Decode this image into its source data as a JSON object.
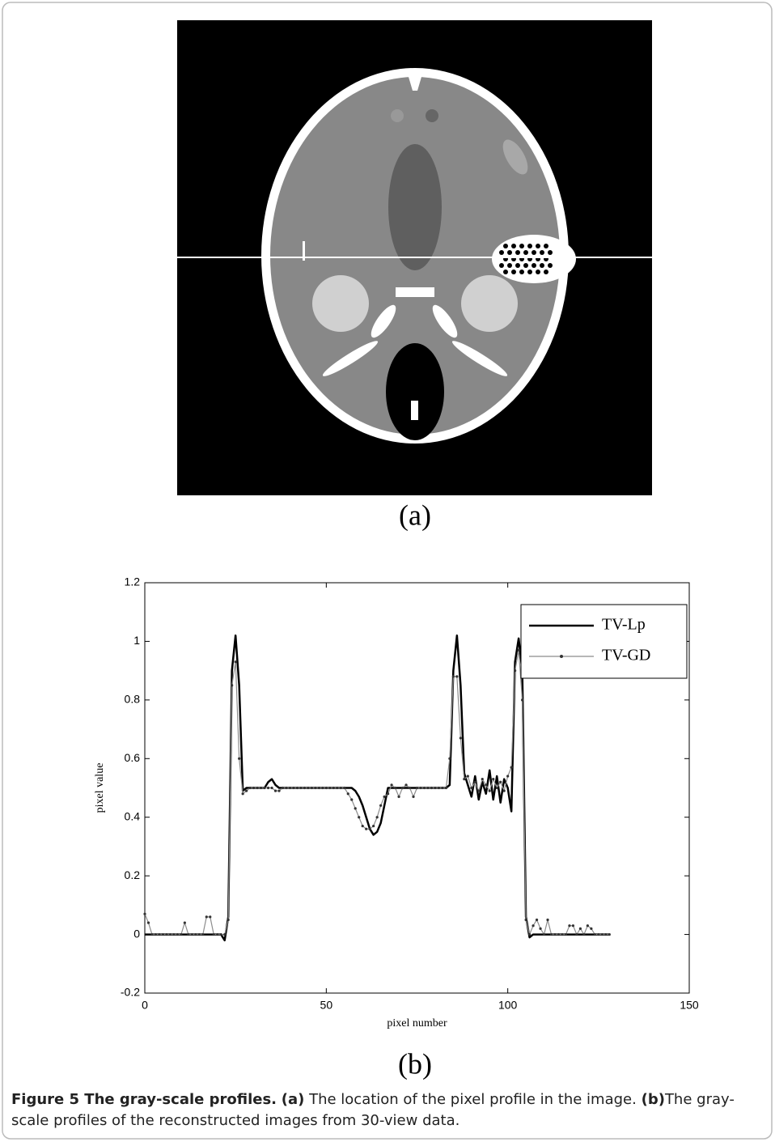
{
  "panels": {
    "a_label": "(a)",
    "b_label": "(b)"
  },
  "caption": {
    "title": "Figure 5 The gray-scale profiles.",
    "a_tag": "(a)",
    "a_text": "The location of the pixel profile in the image.",
    "b_tag": "(b)",
    "b_text": "The gray-scale profiles of the reconstructed images from 30-view data."
  },
  "chart_data": {
    "type": "line",
    "xlabel": "pixel number",
    "ylabel": "pixel value",
    "xlim": [
      0,
      150
    ],
    "ylim": [
      -0.2,
      1.2
    ],
    "xticks": [
      0,
      50,
      100,
      150
    ],
    "yticks": [
      -0.2,
      0,
      0.2,
      0.4,
      0.6,
      0.8,
      1,
      1.2
    ],
    "legend": "top-right",
    "x": [
      0,
      1,
      2,
      3,
      4,
      5,
      6,
      7,
      8,
      9,
      10,
      11,
      12,
      13,
      14,
      15,
      16,
      17,
      18,
      19,
      20,
      21,
      22,
      23,
      24,
      25,
      26,
      27,
      28,
      29,
      30,
      31,
      32,
      33,
      34,
      35,
      36,
      37,
      38,
      39,
      40,
      41,
      42,
      43,
      44,
      45,
      46,
      47,
      48,
      49,
      50,
      51,
      52,
      53,
      54,
      55,
      56,
      57,
      58,
      59,
      60,
      61,
      62,
      63,
      64,
      65,
      66,
      67,
      68,
      69,
      70,
      71,
      72,
      73,
      74,
      75,
      76,
      77,
      78,
      79,
      80,
      81,
      82,
      83,
      84,
      85,
      86,
      87,
      88,
      89,
      90,
      91,
      92,
      93,
      94,
      95,
      96,
      97,
      98,
      99,
      100,
      101,
      102,
      103,
      104,
      105,
      106,
      107,
      108,
      109,
      110,
      111,
      112,
      113,
      114,
      115,
      116,
      117,
      118,
      119,
      120,
      121,
      122,
      123,
      124,
      125,
      126,
      127,
      128
    ],
    "series": [
      {
        "name": "TV-Lp",
        "color": "#000000",
        "width": 2.5,
        "marker": false,
        "values": [
          0,
          0,
          0,
          0,
          0,
          0,
          0,
          0,
          0,
          0,
          0,
          0,
          0,
          0,
          0,
          0,
          0,
          0,
          0,
          0,
          0,
          0,
          -0.02,
          0.06,
          0.9,
          1.02,
          0.85,
          0.49,
          0.5,
          0.5,
          0.5,
          0.5,
          0.5,
          0.5,
          0.52,
          0.53,
          0.51,
          0.5,
          0.5,
          0.5,
          0.5,
          0.5,
          0.5,
          0.5,
          0.5,
          0.5,
          0.5,
          0.5,
          0.5,
          0.5,
          0.5,
          0.5,
          0.5,
          0.5,
          0.5,
          0.5,
          0.5,
          0.5,
          0.49,
          0.47,
          0.44,
          0.4,
          0.36,
          0.34,
          0.35,
          0.38,
          0.44,
          0.5,
          0.5,
          0.5,
          0.5,
          0.5,
          0.5,
          0.5,
          0.5,
          0.5,
          0.5,
          0.5,
          0.5,
          0.5,
          0.5,
          0.5,
          0.5,
          0.5,
          0.51,
          0.9,
          1.02,
          0.85,
          0.55,
          0.51,
          0.47,
          0.54,
          0.46,
          0.52,
          0.48,
          0.56,
          0.46,
          0.54,
          0.45,
          0.53,
          0.5,
          0.42,
          0.93,
          1.01,
          0.9,
          0.06,
          -0.01,
          0,
          0,
          0,
          0,
          0,
          0,
          0,
          0,
          0,
          0,
          0,
          0,
          0,
          0,
          0,
          0,
          0,
          0,
          0,
          0,
          0,
          0
        ]
      },
      {
        "name": "TV-GD",
        "color": "#8c8c8c",
        "width": 1.2,
        "marker": true,
        "values": [
          0.07,
          0.04,
          0,
          0,
          0,
          0,
          0,
          0,
          0,
          0,
          0,
          0.04,
          0,
          0,
          0,
          0,
          0,
          0.06,
          0.06,
          0,
          0,
          0,
          0,
          0.05,
          0.85,
          0.93,
          0.6,
          0.48,
          0.49,
          0.5,
          0.5,
          0.5,
          0.5,
          0.5,
          0.5,
          0.5,
          0.49,
          0.49,
          0.5,
          0.5,
          0.5,
          0.5,
          0.5,
          0.5,
          0.5,
          0.5,
          0.5,
          0.5,
          0.5,
          0.5,
          0.5,
          0.5,
          0.5,
          0.5,
          0.5,
          0.5,
          0.48,
          0.46,
          0.43,
          0.4,
          0.37,
          0.36,
          0.36,
          0.37,
          0.4,
          0.44,
          0.47,
          0.48,
          0.51,
          0.5,
          0.47,
          0.5,
          0.51,
          0.5,
          0.47,
          0.5,
          0.5,
          0.5,
          0.5,
          0.5,
          0.5,
          0.5,
          0.5,
          0.5,
          0.6,
          0.88,
          0.88,
          0.67,
          0.53,
          0.54,
          0.5,
          0.52,
          0.49,
          0.53,
          0.51,
          0.49,
          0.53,
          0.5,
          0.52,
          0.49,
          0.54,
          0.57,
          0.9,
          0.97,
          0.8,
          0.05,
          0,
          0.03,
          0.05,
          0.02,
          0,
          0.05,
          0,
          0,
          0,
          0,
          0,
          0.03,
          0.03,
          0,
          0.02,
          0,
          0.03,
          0.02,
          0,
          0,
          0,
          0,
          0
        ]
      }
    ]
  }
}
